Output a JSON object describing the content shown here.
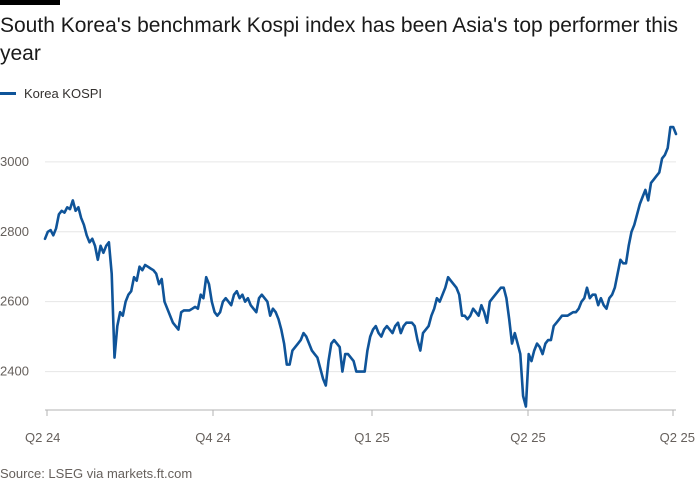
{
  "title": "South Korea's benchmark Kospi index has been Asia's top performer this year",
  "legend_label": "Korea KOSPI",
  "source": "Source: LSEG via markets.ft.com",
  "colors": {
    "line": "#0f5499",
    "grid": "#e6e6e6",
    "axis": "#b3b3b3"
  },
  "chart_data": {
    "type": "line",
    "title": "South Korea's benchmark Kospi index has been Asia's top performer this year",
    "xlabel": "",
    "ylabel": "",
    "x_ticks": [
      "Q2 24",
      "Q4 24",
      "Q1 25",
      "Q2 25",
      "Q2 25"
    ],
    "y_ticks": [
      2400,
      2600,
      2800,
      3000
    ],
    "ylim": [
      2290,
      3120
    ],
    "grid": true,
    "legend_position": "top-left",
    "series": [
      {
        "name": "Korea KOSPI",
        "values": [
          2780,
          2800,
          2805,
          2790,
          2810,
          2850,
          2860,
          2855,
          2870,
          2865,
          2890,
          2860,
          2870,
          2840,
          2820,
          2790,
          2770,
          2780,
          2760,
          2720,
          2760,
          2740,
          2760,
          2770,
          2680,
          2440,
          2530,
          2570,
          2560,
          2600,
          2620,
          2630,
          2670,
          2660,
          2700,
          2690,
          2705,
          2700,
          2695,
          2690,
          2680,
          2650,
          2665,
          2600,
          2580,
          2560,
          2540,
          2530,
          2520,
          2570,
          2575,
          2575,
          2575,
          2580,
          2585,
          2580,
          2620,
          2610,
          2670,
          2650,
          2600,
          2570,
          2560,
          2570,
          2600,
          2610,
          2600,
          2590,
          2620,
          2630,
          2610,
          2620,
          2600,
          2610,
          2590,
          2580,
          2570,
          2610,
          2620,
          2610,
          2600,
          2560,
          2580,
          2570,
          2550,
          2520,
          2480,
          2420,
          2420,
          2460,
          2470,
          2480,
          2490,
          2510,
          2500,
          2480,
          2460,
          2450,
          2440,
          2410,
          2380,
          2360,
          2430,
          2480,
          2490,
          2480,
          2470,
          2400,
          2450,
          2450,
          2440,
          2430,
          2400,
          2400,
          2400,
          2400,
          2460,
          2500,
          2520,
          2530,
          2510,
          2500,
          2520,
          2530,
          2520,
          2510,
          2530,
          2540,
          2510,
          2530,
          2540,
          2540,
          2540,
          2530,
          2490,
          2460,
          2510,
          2520,
          2530,
          2560,
          2580,
          2610,
          2600,
          2620,
          2640,
          2670,
          2660,
          2650,
          2640,
          2620,
          2560,
          2560,
          2550,
          2560,
          2580,
          2570,
          2560,
          2590,
          2570,
          2540,
          2600,
          2610,
          2620,
          2630,
          2640,
          2640,
          2610,
          2550,
          2480,
          2510,
          2480,
          2450,
          2330,
          2300,
          2450,
          2430,
          2460,
          2480,
          2470,
          2450,
          2480,
          2490,
          2490,
          2530,
          2540,
          2550,
          2560,
          2560,
          2560,
          2565,
          2570,
          2570,
          2580,
          2600,
          2610,
          2640,
          2610,
          2620,
          2620,
          2590,
          2610,
          2590,
          2580,
          2610,
          2620,
          2640,
          2680,
          2720,
          2710,
          2710,
          2760,
          2800,
          2820,
          2850,
          2880,
          2900,
          2920,
          2890,
          2940,
          2950,
          2960,
          2970,
          3010,
          3020,
          3040,
          3100,
          3100,
          3080
        ]
      }
    ]
  }
}
